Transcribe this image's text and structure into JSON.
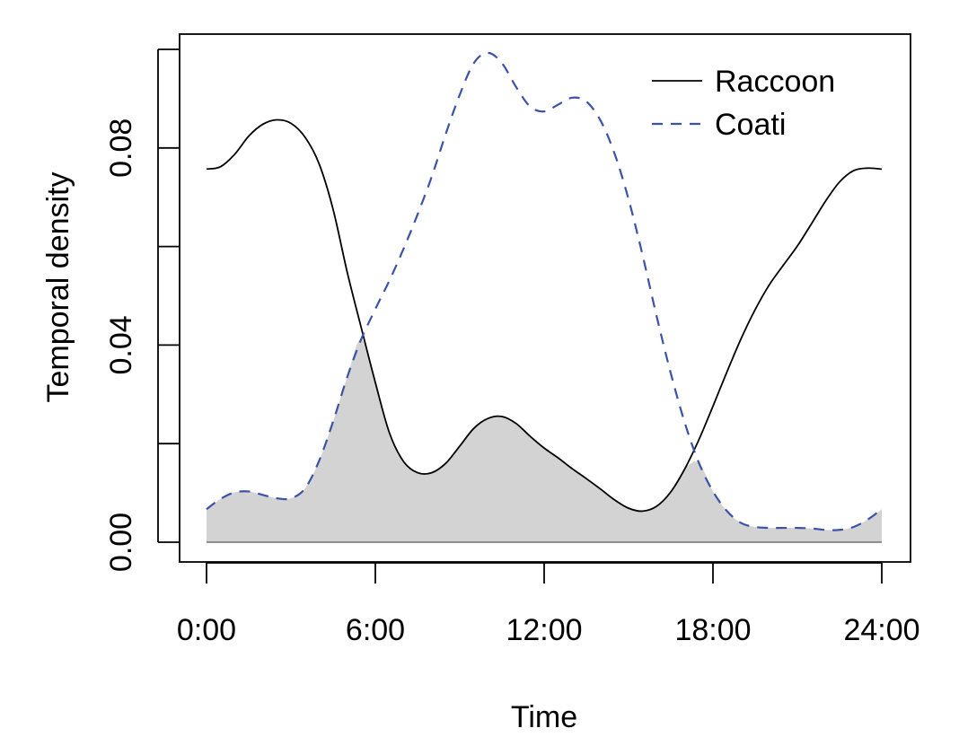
{
  "chart_data": {
    "type": "area",
    "title": "",
    "xlabel": "Time",
    "ylabel": "Temporal density",
    "xlim": [
      0,
      24
    ],
    "ylim": [
      0,
      0.1
    ],
    "x_ticks": [
      0,
      6,
      12,
      18,
      24
    ],
    "x_tick_labels": [
      "0:00",
      "6:00",
      "12:00",
      "18:00",
      "24:00"
    ],
    "y_ticks": [
      0,
      0.02,
      0.04,
      0.06,
      0.08,
      0.1
    ],
    "y_tick_labels": [
      "0.00",
      "",
      "0.04",
      "",
      "0.08",
      ""
    ],
    "grid": false,
    "legend_position": "top-right",
    "overlap_fill": "#d3d3d3",
    "series": [
      {
        "name": "Raccoon",
        "color": "#000000",
        "line_style": "solid",
        "points": [
          [
            0,
            0.0757
          ],
          [
            0.5,
            0.0762
          ],
          [
            1,
            0.0787
          ],
          [
            1.5,
            0.0824
          ],
          [
            2,
            0.0848
          ],
          [
            2.5,
            0.0857
          ],
          [
            3,
            0.085
          ],
          [
            3.5,
            0.0822
          ],
          [
            4,
            0.0768
          ],
          [
            4.5,
            0.0675
          ],
          [
            5,
            0.0548
          ],
          [
            5.5,
            0.0435
          ],
          [
            6,
            0.0324
          ],
          [
            6.5,
            0.0222
          ],
          [
            7,
            0.0164
          ],
          [
            7.5,
            0.0141
          ],
          [
            8,
            0.0141
          ],
          [
            8.5,
            0.016
          ],
          [
            9,
            0.0195
          ],
          [
            9.5,
            0.0231
          ],
          [
            10,
            0.0251
          ],
          [
            10.5,
            0.0255
          ],
          [
            11,
            0.0241
          ],
          [
            11.5,
            0.0215
          ],
          [
            12,
            0.0191
          ],
          [
            12.5,
            0.0171
          ],
          [
            13,
            0.0149
          ],
          [
            13.5,
            0.0129
          ],
          [
            14,
            0.0108
          ],
          [
            14.5,
            0.0086
          ],
          [
            15,
            0.0069
          ],
          [
            15.5,
            0.0063
          ],
          [
            16,
            0.0073
          ],
          [
            16.5,
            0.0102
          ],
          [
            17,
            0.0149
          ],
          [
            17.5,
            0.0208
          ],
          [
            18,
            0.0276
          ],
          [
            18.5,
            0.0346
          ],
          [
            19,
            0.0413
          ],
          [
            19.5,
            0.0472
          ],
          [
            20,
            0.0522
          ],
          [
            20.5,
            0.0562
          ],
          [
            21,
            0.0601
          ],
          [
            21.5,
            0.0646
          ],
          [
            22,
            0.0692
          ],
          [
            22.5,
            0.0731
          ],
          [
            23,
            0.0754
          ],
          [
            23.5,
            0.0759
          ],
          [
            24,
            0.0757
          ]
        ]
      },
      {
        "name": "Coati",
        "color": "#3c52a8",
        "line_style": "dashed",
        "points": [
          [
            0,
            0.0067
          ],
          [
            0.5,
            0.0088
          ],
          [
            1,
            0.0101
          ],
          [
            1.5,
            0.0103
          ],
          [
            2,
            0.0096
          ],
          [
            2.5,
            0.0089
          ],
          [
            3,
            0.0089
          ],
          [
            3.5,
            0.0109
          ],
          [
            4,
            0.0165
          ],
          [
            4.5,
            0.0245
          ],
          [
            5,
            0.0335
          ],
          [
            5.5,
            0.0412
          ],
          [
            6,
            0.0473
          ],
          [
            6.5,
            0.0531
          ],
          [
            7,
            0.0595
          ],
          [
            7.5,
            0.0665
          ],
          [
            8,
            0.0741
          ],
          [
            8.5,
            0.0828
          ],
          [
            9,
            0.0908
          ],
          [
            9.5,
            0.0972
          ],
          [
            10,
            0.0993
          ],
          [
            10.5,
            0.0972
          ],
          [
            11,
            0.0924
          ],
          [
            11.5,
            0.0884
          ],
          [
            12,
            0.0874
          ],
          [
            12.5,
            0.0888
          ],
          [
            13,
            0.0902
          ],
          [
            13.5,
            0.0894
          ],
          [
            14,
            0.0856
          ],
          [
            14.5,
            0.0789
          ],
          [
            15,
            0.0696
          ],
          [
            15.5,
            0.0582
          ],
          [
            16,
            0.0458
          ],
          [
            16.5,
            0.0343
          ],
          [
            17,
            0.0242
          ],
          [
            17.5,
            0.0161
          ],
          [
            18,
            0.0103
          ],
          [
            18.5,
            0.0063
          ],
          [
            19,
            0.0039
          ],
          [
            19.5,
            0.0031
          ],
          [
            20,
            0.0029
          ],
          [
            20.5,
            0.0029
          ],
          [
            21,
            0.0029
          ],
          [
            21.5,
            0.0028
          ],
          [
            22,
            0.0025
          ],
          [
            22.5,
            0.0025
          ],
          [
            23,
            0.0031
          ],
          [
            23.5,
            0.0046
          ],
          [
            24,
            0.0067
          ]
        ]
      }
    ]
  }
}
